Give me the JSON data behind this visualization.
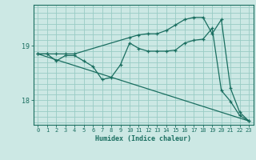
{
  "title": "",
  "xlabel": "Humidex (Indice chaleur)",
  "bg_color": "#cce8e4",
  "line_color": "#1a6e60",
  "grid_color": "#99ccc4",
  "xlim": [
    -0.5,
    23.5
  ],
  "ylim": [
    17.55,
    19.75
  ],
  "yticks": [
    18,
    19
  ],
  "xticks": [
    0,
    1,
    2,
    3,
    4,
    5,
    6,
    7,
    8,
    9,
    10,
    11,
    12,
    13,
    14,
    15,
    16,
    17,
    18,
    19,
    20,
    21,
    22,
    23
  ],
  "line1_x": [
    0,
    1,
    2,
    3,
    4,
    5,
    6,
    7,
    8,
    9,
    10,
    11,
    12,
    13,
    14,
    15,
    16,
    17,
    18,
    19,
    20,
    21,
    22,
    23
  ],
  "line1_y": [
    18.85,
    18.85,
    18.72,
    18.82,
    18.82,
    18.72,
    18.62,
    18.38,
    18.42,
    18.65,
    19.05,
    18.95,
    18.9,
    18.9,
    18.9,
    18.92,
    19.05,
    19.1,
    19.12,
    19.32,
    18.18,
    17.98,
    17.72,
    17.62
  ],
  "line2_x": [
    0,
    1,
    2,
    3,
    4,
    10,
    11,
    12,
    13,
    14,
    15,
    16,
    17,
    18,
    19,
    20,
    21,
    22,
    23
  ],
  "line2_y": [
    18.85,
    18.85,
    18.85,
    18.85,
    18.85,
    19.15,
    19.2,
    19.22,
    19.22,
    19.28,
    19.38,
    19.48,
    19.52,
    19.52,
    19.22,
    19.48,
    18.22,
    17.78,
    17.62
  ],
  "line3_x": [
    0,
    23
  ],
  "line3_y": [
    18.85,
    17.62
  ]
}
